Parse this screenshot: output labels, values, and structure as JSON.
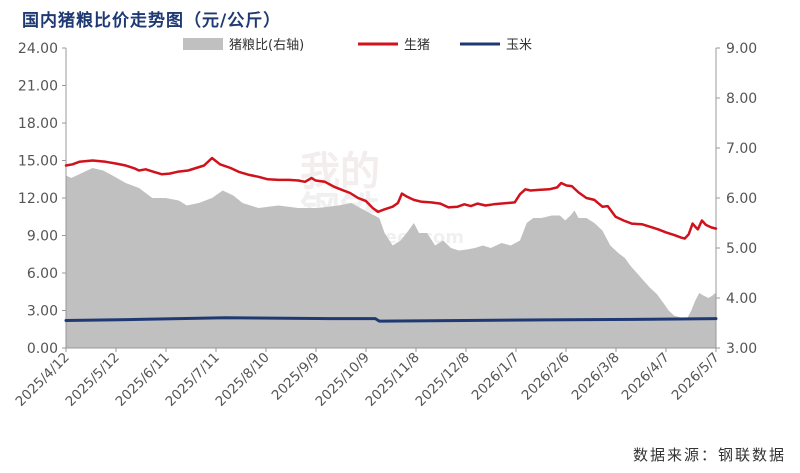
{
  "header": {
    "title": "国内猪粮比价走势图（元/公斤）"
  },
  "footer": {
    "source": "数据来源：钢联数据"
  },
  "chart_data": {
    "type": "line",
    "title": "国内猪粮比价走势图（元/公斤）",
    "categories": [
      "2025/4/12",
      "2025/5/12",
      "2025/6/11",
      "2025/7/11",
      "2025/8/10",
      "2025/9/9",
      "2025/10/9",
      "2025/11/8",
      "2025/12/8",
      "2026/1/7",
      "2026/2/6",
      "2026/3/8",
      "2026/4/7",
      "2026/5/7"
    ],
    "ylim": [
      0,
      24
    ],
    "yticks": [
      "0.00",
      "3.00",
      "6.00",
      "9.00",
      "12.00",
      "15.00",
      "18.00",
      "21.00",
      "24.00"
    ],
    "y2lim": [
      3,
      9
    ],
    "y2ticks": [
      "3.00",
      "4.00",
      "5.00",
      "6.00",
      "7.00",
      "8.00",
      "9.00"
    ],
    "legend_position": "top",
    "series": [
      {
        "name": "猪粮比(右轴)",
        "type": "area",
        "axis": "right",
        "color": "#c0c0c0",
        "points": [
          [
            0,
            6.45
          ],
          [
            4,
            6.4
          ],
          [
            12,
            6.5
          ],
          [
            20,
            6.6
          ],
          [
            28,
            6.55
          ],
          [
            35,
            6.45
          ],
          [
            45,
            6.3
          ],
          [
            55,
            6.2
          ],
          [
            65,
            6.0
          ],
          [
            75,
            6.0
          ],
          [
            85,
            5.95
          ],
          [
            91,
            5.85
          ],
          [
            100,
            5.9
          ],
          [
            110,
            6.0
          ],
          [
            118,
            6.15
          ],
          [
            126,
            6.05
          ],
          [
            133,
            5.9
          ],
          [
            145,
            5.8
          ],
          [
            160,
            5.85
          ],
          [
            175,
            5.8
          ],
          [
            190,
            5.8
          ],
          [
            205,
            5.85
          ],
          [
            215,
            5.9
          ],
          [
            225,
            5.75
          ],
          [
            236,
            5.6
          ],
          [
            240,
            5.3
          ],
          [
            246,
            5.05
          ],
          [
            252,
            5.15
          ],
          [
            258,
            5.35
          ],
          [
            262,
            5.5
          ],
          [
            266,
            5.3
          ],
          [
            272,
            5.3
          ],
          [
            278,
            5.05
          ],
          [
            284,
            5.15
          ],
          [
            290,
            5.0
          ],
          [
            296,
            4.95
          ],
          [
            302,
            4.97
          ],
          [
            308,
            5.0
          ],
          [
            314,
            5.05
          ],
          [
            320,
            5.0
          ],
          [
            328,
            5.1
          ],
          [
            335,
            5.05
          ],
          [
            342,
            5.15
          ],
          [
            347,
            5.5
          ],
          [
            352,
            5.6
          ],
          [
            358,
            5.6
          ],
          [
            366,
            5.65
          ],
          [
            372,
            5.65
          ],
          [
            376,
            5.55
          ],
          [
            380,
            5.65
          ],
          [
            383,
            5.75
          ],
          [
            386,
            5.6
          ],
          [
            392,
            5.6
          ],
          [
            398,
            5.5
          ],
          [
            404,
            5.35
          ],
          [
            410,
            5.05
          ],
          [
            416,
            4.9
          ],
          [
            421,
            4.8
          ],
          [
            425,
            4.65
          ],
          [
            430,
            4.5
          ],
          [
            435,
            4.35
          ],
          [
            440,
            4.2
          ],
          [
            445,
            4.08
          ],
          [
            450,
            3.9
          ],
          [
            454,
            3.75
          ],
          [
            458,
            3.65
          ],
          [
            464,
            3.6
          ],
          [
            468,
            3.6
          ],
          [
            471,
            3.75
          ],
          [
            474,
            3.95
          ],
          [
            477,
            4.1
          ],
          [
            480,
            4.05
          ],
          [
            484,
            4.0
          ],
          [
            487,
            4.05
          ],
          [
            489,
            4.1
          ],
          [
            489.6,
            4.05
          ]
        ]
      },
      {
        "name": "生猪",
        "type": "line",
        "axis": "left",
        "color": "#d0121c",
        "points": [
          [
            0,
            14.6
          ],
          [
            5,
            14.7
          ],
          [
            10,
            14.9
          ],
          [
            15,
            14.95
          ],
          [
            20,
            15.0
          ],
          [
            30,
            14.9
          ],
          [
            38,
            14.75
          ],
          [
            45,
            14.6
          ],
          [
            52,
            14.35
          ],
          [
            55,
            14.2
          ],
          [
            60,
            14.3
          ],
          [
            66,
            14.1
          ],
          [
            72,
            13.9
          ],
          [
            78,
            13.95
          ],
          [
            84,
            14.1
          ],
          [
            88,
            14.15
          ],
          [
            92,
            14.2
          ],
          [
            98,
            14.4
          ],
          [
            104,
            14.6
          ],
          [
            110,
            15.2
          ],
          [
            116,
            14.7
          ],
          [
            124,
            14.4
          ],
          [
            130,
            14.1
          ],
          [
            138,
            13.85
          ],
          [
            145,
            13.7
          ],
          [
            152,
            13.5
          ],
          [
            160,
            13.45
          ],
          [
            168,
            13.45
          ],
          [
            175,
            13.4
          ],
          [
            180,
            13.3
          ],
          [
            185,
            13.6
          ],
          [
            188,
            13.4
          ],
          [
            195,
            13.3
          ],
          [
            202,
            12.9
          ],
          [
            208,
            12.65
          ],
          [
            214,
            12.4
          ],
          [
            220,
            12.0
          ],
          [
            226,
            11.75
          ],
          [
            231,
            11.2
          ],
          [
            235,
            10.9
          ],
          [
            240,
            11.1
          ],
          [
            246,
            11.3
          ],
          [
            250,
            11.6
          ],
          [
            253,
            12.35
          ],
          [
            257,
            12.1
          ],
          [
            262,
            11.85
          ],
          [
            268,
            11.7
          ],
          [
            275,
            11.65
          ],
          [
            282,
            11.55
          ],
          [
            288,
            11.25
          ],
          [
            295,
            11.3
          ],
          [
            300,
            11.5
          ],
          [
            305,
            11.35
          ],
          [
            310,
            11.55
          ],
          [
            316,
            11.4
          ],
          [
            322,
            11.5
          ],
          [
            338,
            11.65
          ],
          [
            342,
            12.3
          ],
          [
            346,
            12.7
          ],
          [
            350,
            12.6
          ],
          [
            356,
            12.65
          ],
          [
            364,
            12.7
          ],
          [
            370,
            12.85
          ],
          [
            373,
            13.2
          ],
          [
            377,
            13.0
          ],
          [
            381,
            12.95
          ],
          [
            386,
            12.45
          ],
          [
            392,
            12.0
          ],
          [
            398,
            11.85
          ],
          [
            404,
            11.3
          ],
          [
            408,
            11.35
          ],
          [
            414,
            10.5
          ],
          [
            420,
            10.2
          ],
          [
            426,
            9.95
          ],
          [
            434,
            9.9
          ],
          [
            440,
            9.7
          ],
          [
            446,
            9.5
          ],
          [
            452,
            9.25
          ],
          [
            458,
            9.05
          ],
          [
            463,
            8.85
          ],
          [
            466,
            8.75
          ],
          [
            469,
            9.1
          ],
          [
            472,
            9.95
          ],
          [
            474,
            9.7
          ],
          [
            476,
            9.5
          ],
          [
            479,
            10.2
          ],
          [
            482,
            9.85
          ],
          [
            486,
            9.65
          ],
          [
            489.6,
            9.55
          ]
        ]
      },
      {
        "name": "玉米",
        "type": "line",
        "axis": "left",
        "color": "#1f3a73",
        "points": [
          [
            0,
            2.2
          ],
          [
            60,
            2.3
          ],
          [
            120,
            2.42
          ],
          [
            200,
            2.35
          ],
          [
            233,
            2.35
          ],
          [
            236,
            2.15
          ],
          [
            300,
            2.2
          ],
          [
            360,
            2.25
          ],
          [
            440,
            2.3
          ],
          [
            489.6,
            2.35
          ]
        ]
      }
    ]
  }
}
